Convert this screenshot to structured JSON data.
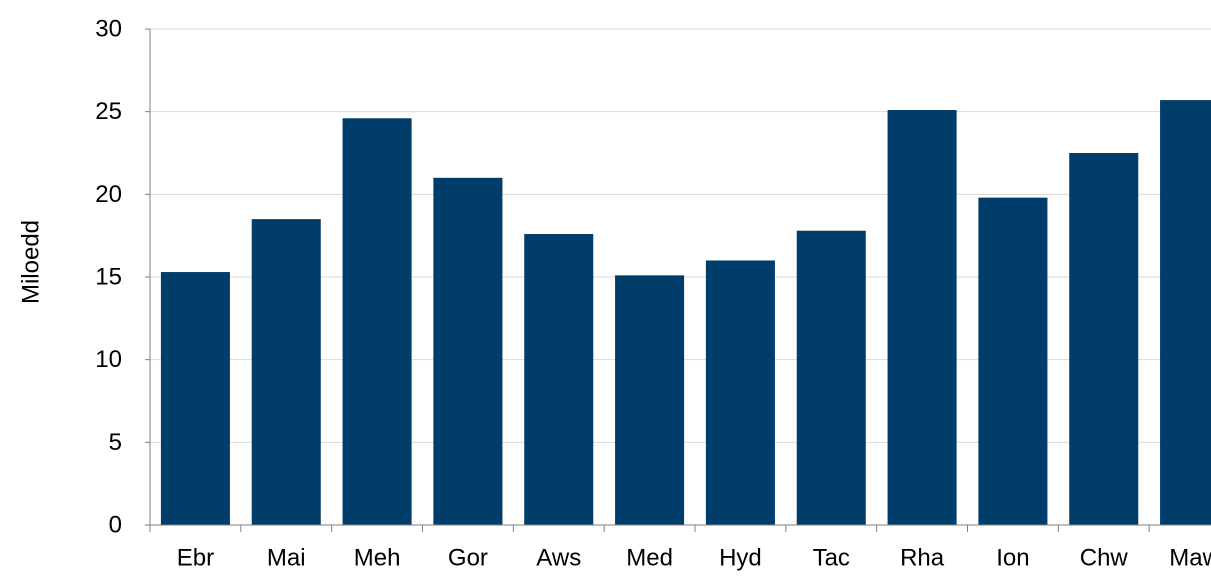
{
  "chart_data": {
    "type": "bar",
    "title": "",
    "xlabel": "",
    "ylabel": "Miloedd",
    "categories": [
      "Ebr",
      "Mai",
      "Meh",
      "Gor",
      "Aws",
      "Med",
      "Hyd",
      "Tac",
      "Rha",
      "Ion",
      "Chw",
      "Maw"
    ],
    "values": [
      15.3,
      18.5,
      24.6,
      21.0,
      17.6,
      15.1,
      16.0,
      17.8,
      25.1,
      19.8,
      22.5,
      25.7
    ],
    "ylim": [
      0,
      30
    ],
    "yticks": [
      "0",
      "5",
      "10",
      "15",
      "20",
      "25",
      "30"
    ],
    "grid": true,
    "legend": "none",
    "colors": {
      "bar": "#003d6b",
      "grid": "#d9d9d9",
      "axis": "#7f7f7f"
    }
  }
}
